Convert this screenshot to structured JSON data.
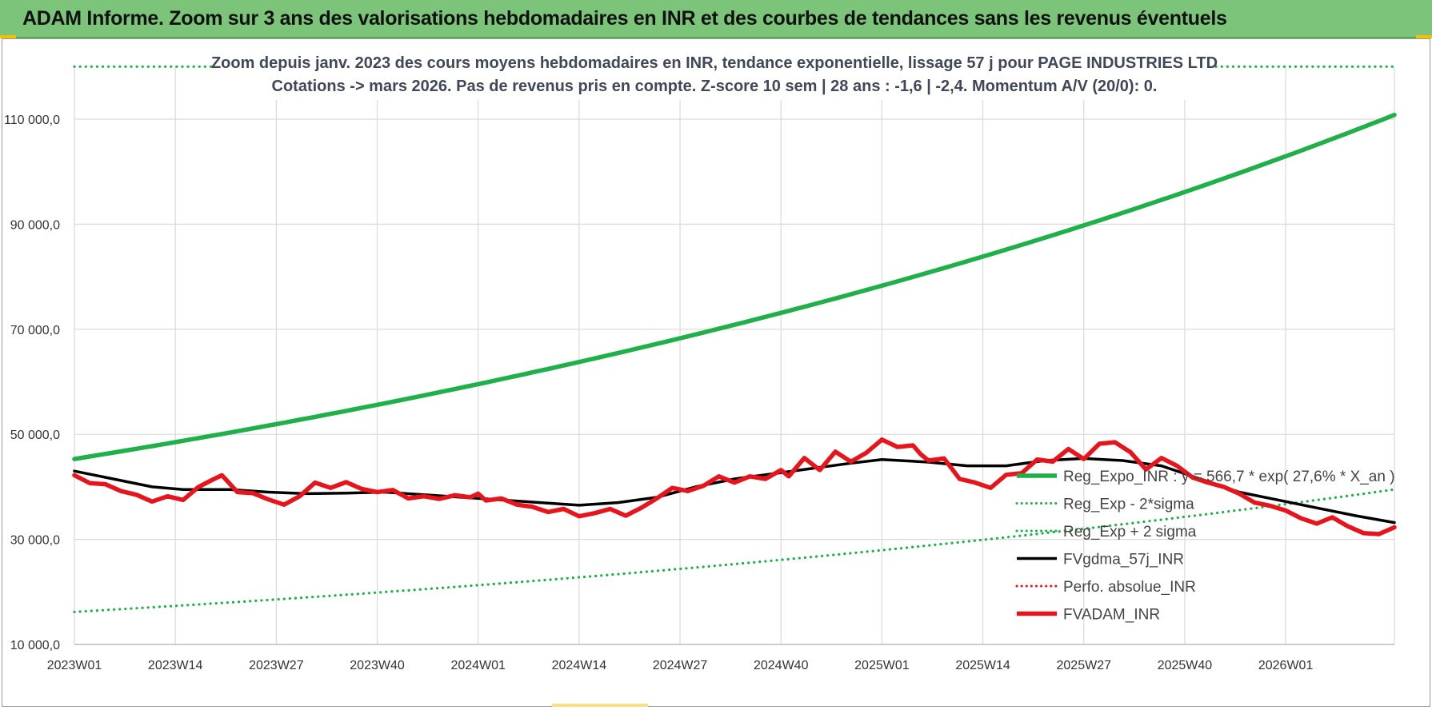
{
  "banner": {
    "title": "ADAM Informe. Zoom sur 3 ans des valorisations hebdomadaires en INR et des courbes de tendances sans les revenus éventuels"
  },
  "colors": {
    "banner_bg": "#7cc47a",
    "green": "#1fb04a",
    "black": "#000000",
    "red": "#e8141c",
    "grid": "#d9d9d9",
    "subtitle_text": "#404858"
  },
  "chart_data": {
    "type": "line",
    "title_line1": "Zoom depuis janv. 2023 des cours moyens hebdomadaires en INR, tendance exponentielle, lissage 57 j pour PAGE INDUSTRIES LTD",
    "title_line2": "Cotations -> mars 2026. Pas de revenus pris en compte. Z-score 10 sem | 28 ans : -1,6 | -2,4. Momentum A/V (20/0): 0.",
    "ylim": [
      10000,
      120000
    ],
    "y_ticks": [
      10000,
      30000,
      50000,
      70000,
      90000,
      110000
    ],
    "y_tick_labels": [
      "10 000,0",
      "30 000,0",
      "50 000,0",
      "70 000,0",
      "90 000,0",
      "110 000,0"
    ],
    "x_ticks": [
      {
        "index": 0,
        "label": "2023W01"
      },
      {
        "index": 13,
        "label": "2023W14"
      },
      {
        "index": 26,
        "label": "2023W27"
      },
      {
        "index": 39,
        "label": "2023W40"
      },
      {
        "index": 52,
        "label": "2024W01"
      },
      {
        "index": 65,
        "label": "2024W14"
      },
      {
        "index": 78,
        "label": "2024W27"
      },
      {
        "index": 91,
        "label": "2024W40"
      },
      {
        "index": 104,
        "label": "2025W01"
      },
      {
        "index": 117,
        "label": "2025W14"
      },
      {
        "index": 130,
        "label": "2025W27"
      },
      {
        "index": 143,
        "label": "2025W40"
      },
      {
        "index": 156,
        "label": "2026W01"
      }
    ],
    "n_weeks": 170,
    "series": [
      {
        "name": "Reg_Expo_INR : y = 566,7 * exp( 27,6% *  X_an )",
        "style": "solid-thick",
        "color": "#1fb04a",
        "anchors": [
          [
            0,
            45300
          ],
          [
            170,
            110800
          ]
        ]
      },
      {
        "name": "Reg_Exp - 2*sigma",
        "style": "dotted",
        "color": "#1fb04a",
        "anchors": [
          [
            0,
            16200
          ],
          [
            170,
            39500
          ]
        ]
      },
      {
        "name": "Reg_Exp + 2 sigma",
        "style": "dotted",
        "color": "#1fb04a",
        "anchors": [
          [
            0,
            120000
          ],
          [
            170,
            120000
          ]
        ]
      },
      {
        "name": "FVgdma_57j_INR",
        "style": "solid",
        "color": "#000000",
        "points": [
          [
            0,
            43000
          ],
          [
            5,
            41500
          ],
          [
            10,
            40000
          ],
          [
            14,
            39500
          ],
          [
            20,
            39500
          ],
          [
            25,
            39000
          ],
          [
            30,
            38700
          ],
          [
            35,
            38800
          ],
          [
            40,
            39000
          ],
          [
            45,
            38500
          ],
          [
            50,
            38000
          ],
          [
            55,
            37500
          ],
          [
            60,
            37000
          ],
          [
            65,
            36500
          ],
          [
            70,
            37000
          ],
          [
            75,
            38000
          ],
          [
            80,
            40000
          ],
          [
            85,
            41500
          ],
          [
            90,
            42500
          ],
          [
            95,
            43500
          ],
          [
            100,
            44500
          ],
          [
            104,
            45200
          ],
          [
            110,
            44700
          ],
          [
            115,
            44000
          ],
          [
            120,
            44000
          ],
          [
            125,
            45000
          ],
          [
            130,
            45400
          ],
          [
            135,
            45000
          ],
          [
            140,
            44000
          ],
          [
            145,
            41500
          ],
          [
            150,
            39000
          ],
          [
            155,
            37500
          ],
          [
            160,
            36000
          ],
          [
            165,
            34500
          ],
          [
            170,
            33200
          ]
        ]
      },
      {
        "name": "Perfo. absolue_INR",
        "style": "dotted",
        "color": "#e8141c",
        "points": []
      },
      {
        "name": "FVADAM_INR",
        "style": "solid-thick",
        "color": "#e8141c",
        "points": [
          [
            0,
            42200
          ],
          [
            2,
            40700
          ],
          [
            4,
            40500
          ],
          [
            6,
            39200
          ],
          [
            8,
            38500
          ],
          [
            10,
            37200
          ],
          [
            12,
            38200
          ],
          [
            14,
            37500
          ],
          [
            16,
            40000
          ],
          [
            18,
            41500
          ],
          [
            19,
            42200
          ],
          [
            21,
            39000
          ],
          [
            23,
            38800
          ],
          [
            25,
            37600
          ],
          [
            27,
            36600
          ],
          [
            29,
            38200
          ],
          [
            31,
            40800
          ],
          [
            33,
            39800
          ],
          [
            35,
            40900
          ],
          [
            37,
            39600
          ],
          [
            39,
            39000
          ],
          [
            41,
            39400
          ],
          [
            43,
            37800
          ],
          [
            45,
            38200
          ],
          [
            47,
            37700
          ],
          [
            49,
            38400
          ],
          [
            51,
            38000
          ],
          [
            52,
            38700
          ],
          [
            53,
            37400
          ],
          [
            55,
            37800
          ],
          [
            57,
            36600
          ],
          [
            59,
            36200
          ],
          [
            61,
            35200
          ],
          [
            63,
            35800
          ],
          [
            65,
            34400
          ],
          [
            67,
            35000
          ],
          [
            69,
            35800
          ],
          [
            71,
            34500
          ],
          [
            73,
            36000
          ],
          [
            75,
            37800
          ],
          [
            77,
            39800
          ],
          [
            79,
            39200
          ],
          [
            81,
            40200
          ],
          [
            83,
            42000
          ],
          [
            85,
            40800
          ],
          [
            87,
            42000
          ],
          [
            89,
            41500
          ],
          [
            91,
            43200
          ],
          [
            92,
            42000
          ],
          [
            94,
            45500
          ],
          [
            96,
            43200
          ],
          [
            98,
            46700
          ],
          [
            100,
            44800
          ],
          [
            102,
            46500
          ],
          [
            104,
            49000
          ],
          [
            106,
            47600
          ],
          [
            108,
            47900
          ],
          [
            109,
            46200
          ],
          [
            110,
            45000
          ],
          [
            112,
            45400
          ],
          [
            114,
            41500
          ],
          [
            116,
            40800
          ],
          [
            118,
            39800
          ],
          [
            120,
            42300
          ],
          [
            122,
            42600
          ],
          [
            124,
            45200
          ],
          [
            126,
            44800
          ],
          [
            128,
            47200
          ],
          [
            130,
            45300
          ],
          [
            132,
            48200
          ],
          [
            134,
            48500
          ],
          [
            136,
            46600
          ],
          [
            138,
            43300
          ],
          [
            140,
            45500
          ],
          [
            142,
            44000
          ],
          [
            144,
            41800
          ],
          [
            146,
            40800
          ],
          [
            148,
            40000
          ],
          [
            150,
            38700
          ],
          [
            152,
            37000
          ],
          [
            154,
            36400
          ],
          [
            156,
            35500
          ],
          [
            158,
            34000
          ],
          [
            160,
            33000
          ],
          [
            162,
            34200
          ],
          [
            164,
            32500
          ],
          [
            166,
            31200
          ],
          [
            168,
            31000
          ],
          [
            170,
            32300
          ]
        ]
      }
    ],
    "legend": [
      {
        "label": "Reg_Expo_INR : y = 566,7 * exp( 27,6% *  X_an )",
        "style": "solid-thick",
        "color": "#1fb04a"
      },
      {
        "label": "Reg_Exp - 2*sigma",
        "style": "dotted",
        "color": "#1fb04a"
      },
      {
        "label": "Reg_Exp + 2 sigma",
        "style": "dotted",
        "color": "#1fb04a"
      },
      {
        "label": "FVgdma_57j_INR",
        "style": "solid",
        "color": "#000000"
      },
      {
        "label": "Perfo. absolue_INR",
        "style": "dotted",
        "color": "#e8141c"
      },
      {
        "label": "FVADAM_INR",
        "style": "solid-thick",
        "color": "#e8141c"
      }
    ]
  }
}
